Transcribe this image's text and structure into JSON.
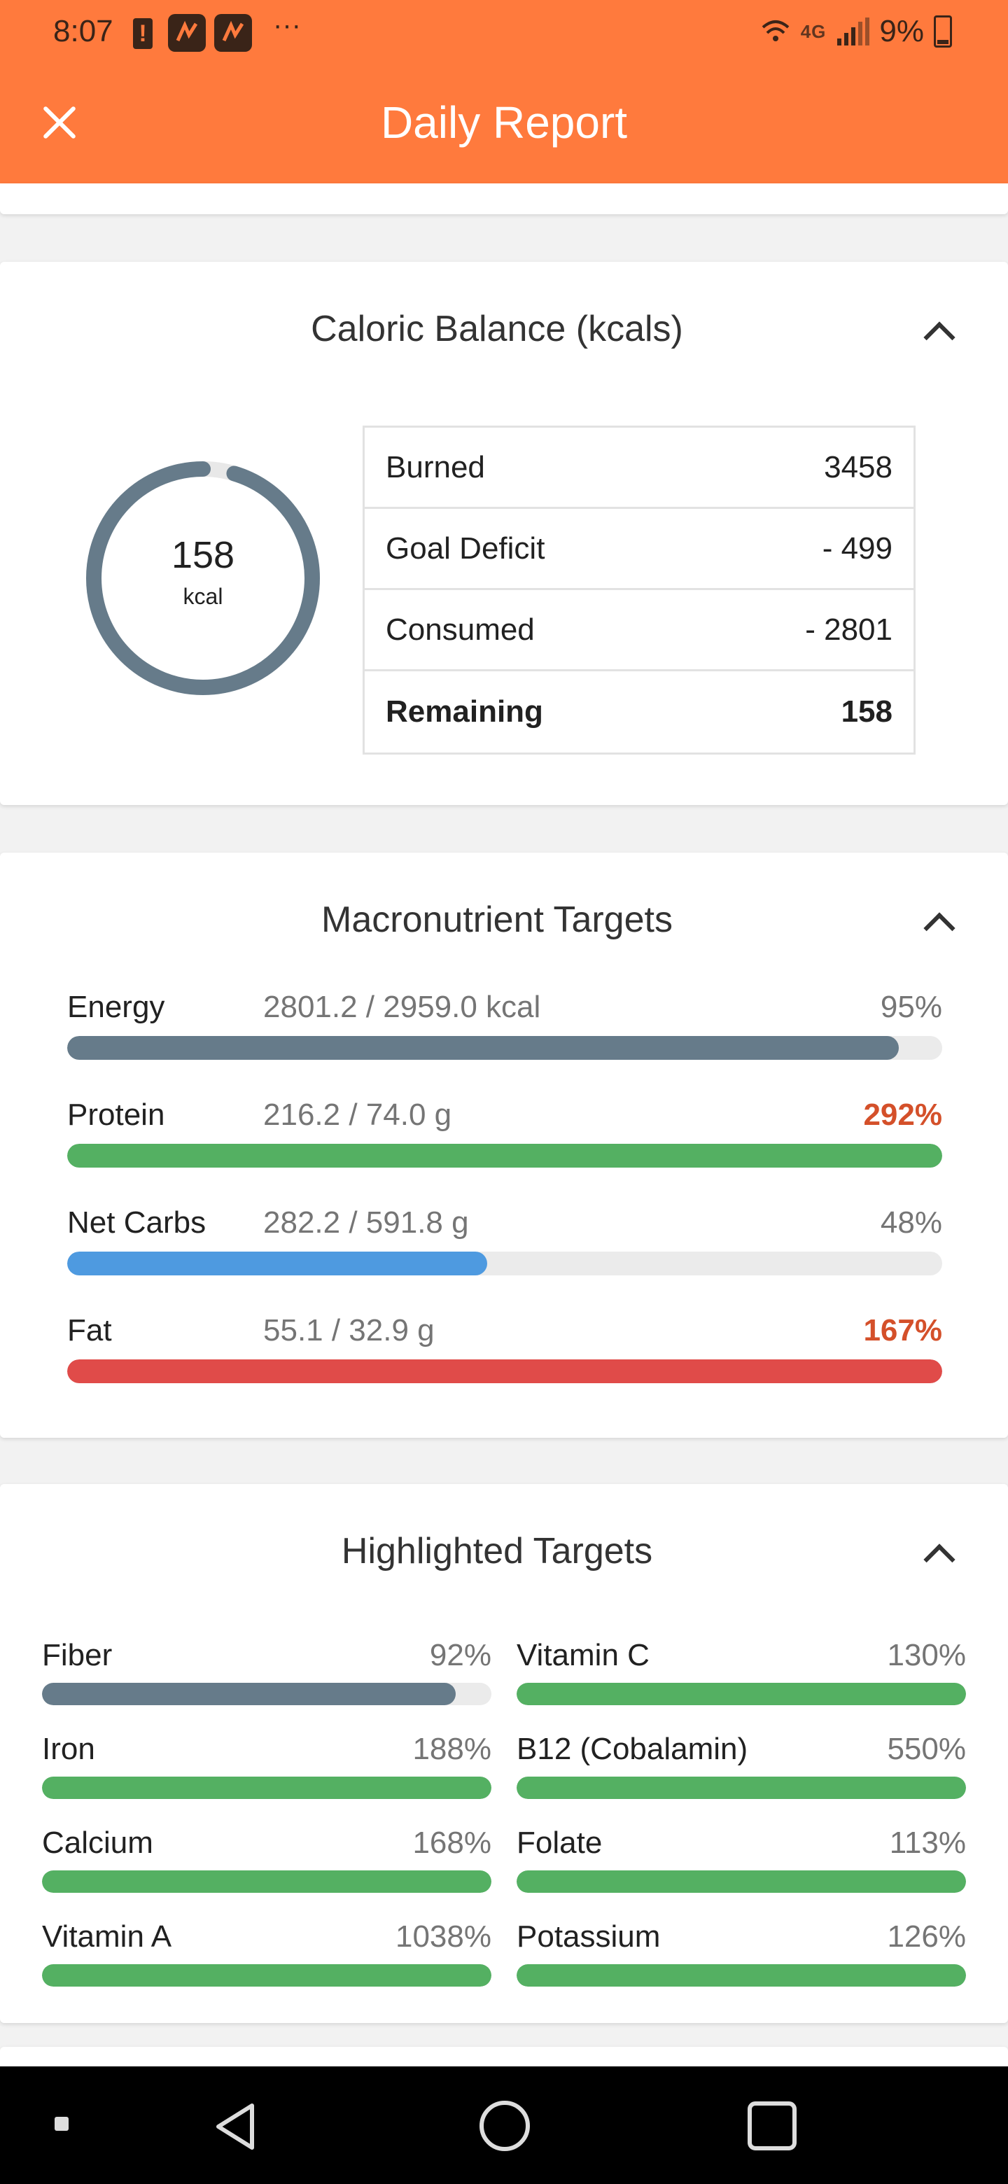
{
  "status_bar": {
    "time": "8:07",
    "network": "4G",
    "battery": "9%"
  },
  "app_bar": {
    "title": "Daily Report"
  },
  "caloric_balance": {
    "title": "Caloric Balance (kcals)",
    "ring": {
      "value": "158",
      "unit": "kcal",
      "fraction_remaining": 0.046
    },
    "rows": [
      {
        "label": "Burned",
        "value": "3458",
        "bold": false
      },
      {
        "label": "Goal Deficit",
        "value": "- 499",
        "bold": false
      },
      {
        "label": "Consumed",
        "value": "- 2801",
        "bold": false
      },
      {
        "label": "Remaining",
        "value": "158",
        "bold": true
      }
    ]
  },
  "macronutrients": {
    "title": "Macronutrient Targets",
    "items": [
      {
        "name": "Energy",
        "amount": "2801.2 / 2959.0 kcal",
        "percent": "95%",
        "fraction": 0.95,
        "color": "#667b8a",
        "over": false
      },
      {
        "name": "Protein",
        "amount": "216.2 / 74.0 g",
        "percent": "292%",
        "fraction": 1.0,
        "color": "#54b062",
        "over": true
      },
      {
        "name": "Net Carbs",
        "amount": "282.2 / 591.8 g",
        "percent": "48%",
        "fraction": 0.48,
        "color": "#4e9ae0",
        "over": false
      },
      {
        "name": "Fat",
        "amount": "55.1 / 32.9 g",
        "percent": "167%",
        "fraction": 1.0,
        "color": "#e04b49",
        "over": true
      }
    ]
  },
  "highlighted": {
    "title": "Highlighted Targets",
    "items": [
      {
        "name": "Fiber",
        "percent": "92%",
        "fraction": 0.92,
        "color": "#667b8a"
      },
      {
        "name": "Vitamin C",
        "percent": "130%",
        "fraction": 1.0,
        "color": "#54b062"
      },
      {
        "name": "Iron",
        "percent": "188%",
        "fraction": 1.0,
        "color": "#54b062"
      },
      {
        "name": "B12 (Cobalamin)",
        "percent": "550%",
        "fraction": 1.0,
        "color": "#54b062"
      },
      {
        "name": "Calcium",
        "percent": "168%",
        "fraction": 1.0,
        "color": "#54b062"
      },
      {
        "name": "Folate",
        "percent": "113%",
        "fraction": 1.0,
        "color": "#54b062"
      },
      {
        "name": "Vitamin A",
        "percent": "1038%",
        "fraction": 1.0,
        "color": "#54b062"
      },
      {
        "name": "Potassium",
        "percent": "126%",
        "fraction": 1.0,
        "color": "#54b062"
      }
    ]
  },
  "colors": {
    "accent": "#ff7a3d",
    "ring": "#667b8a",
    "over": "#d4502a"
  },
  "icons": [
    "close-icon",
    "chevron-up-icon",
    "back-icon",
    "home-icon",
    "recents-icon"
  ]
}
